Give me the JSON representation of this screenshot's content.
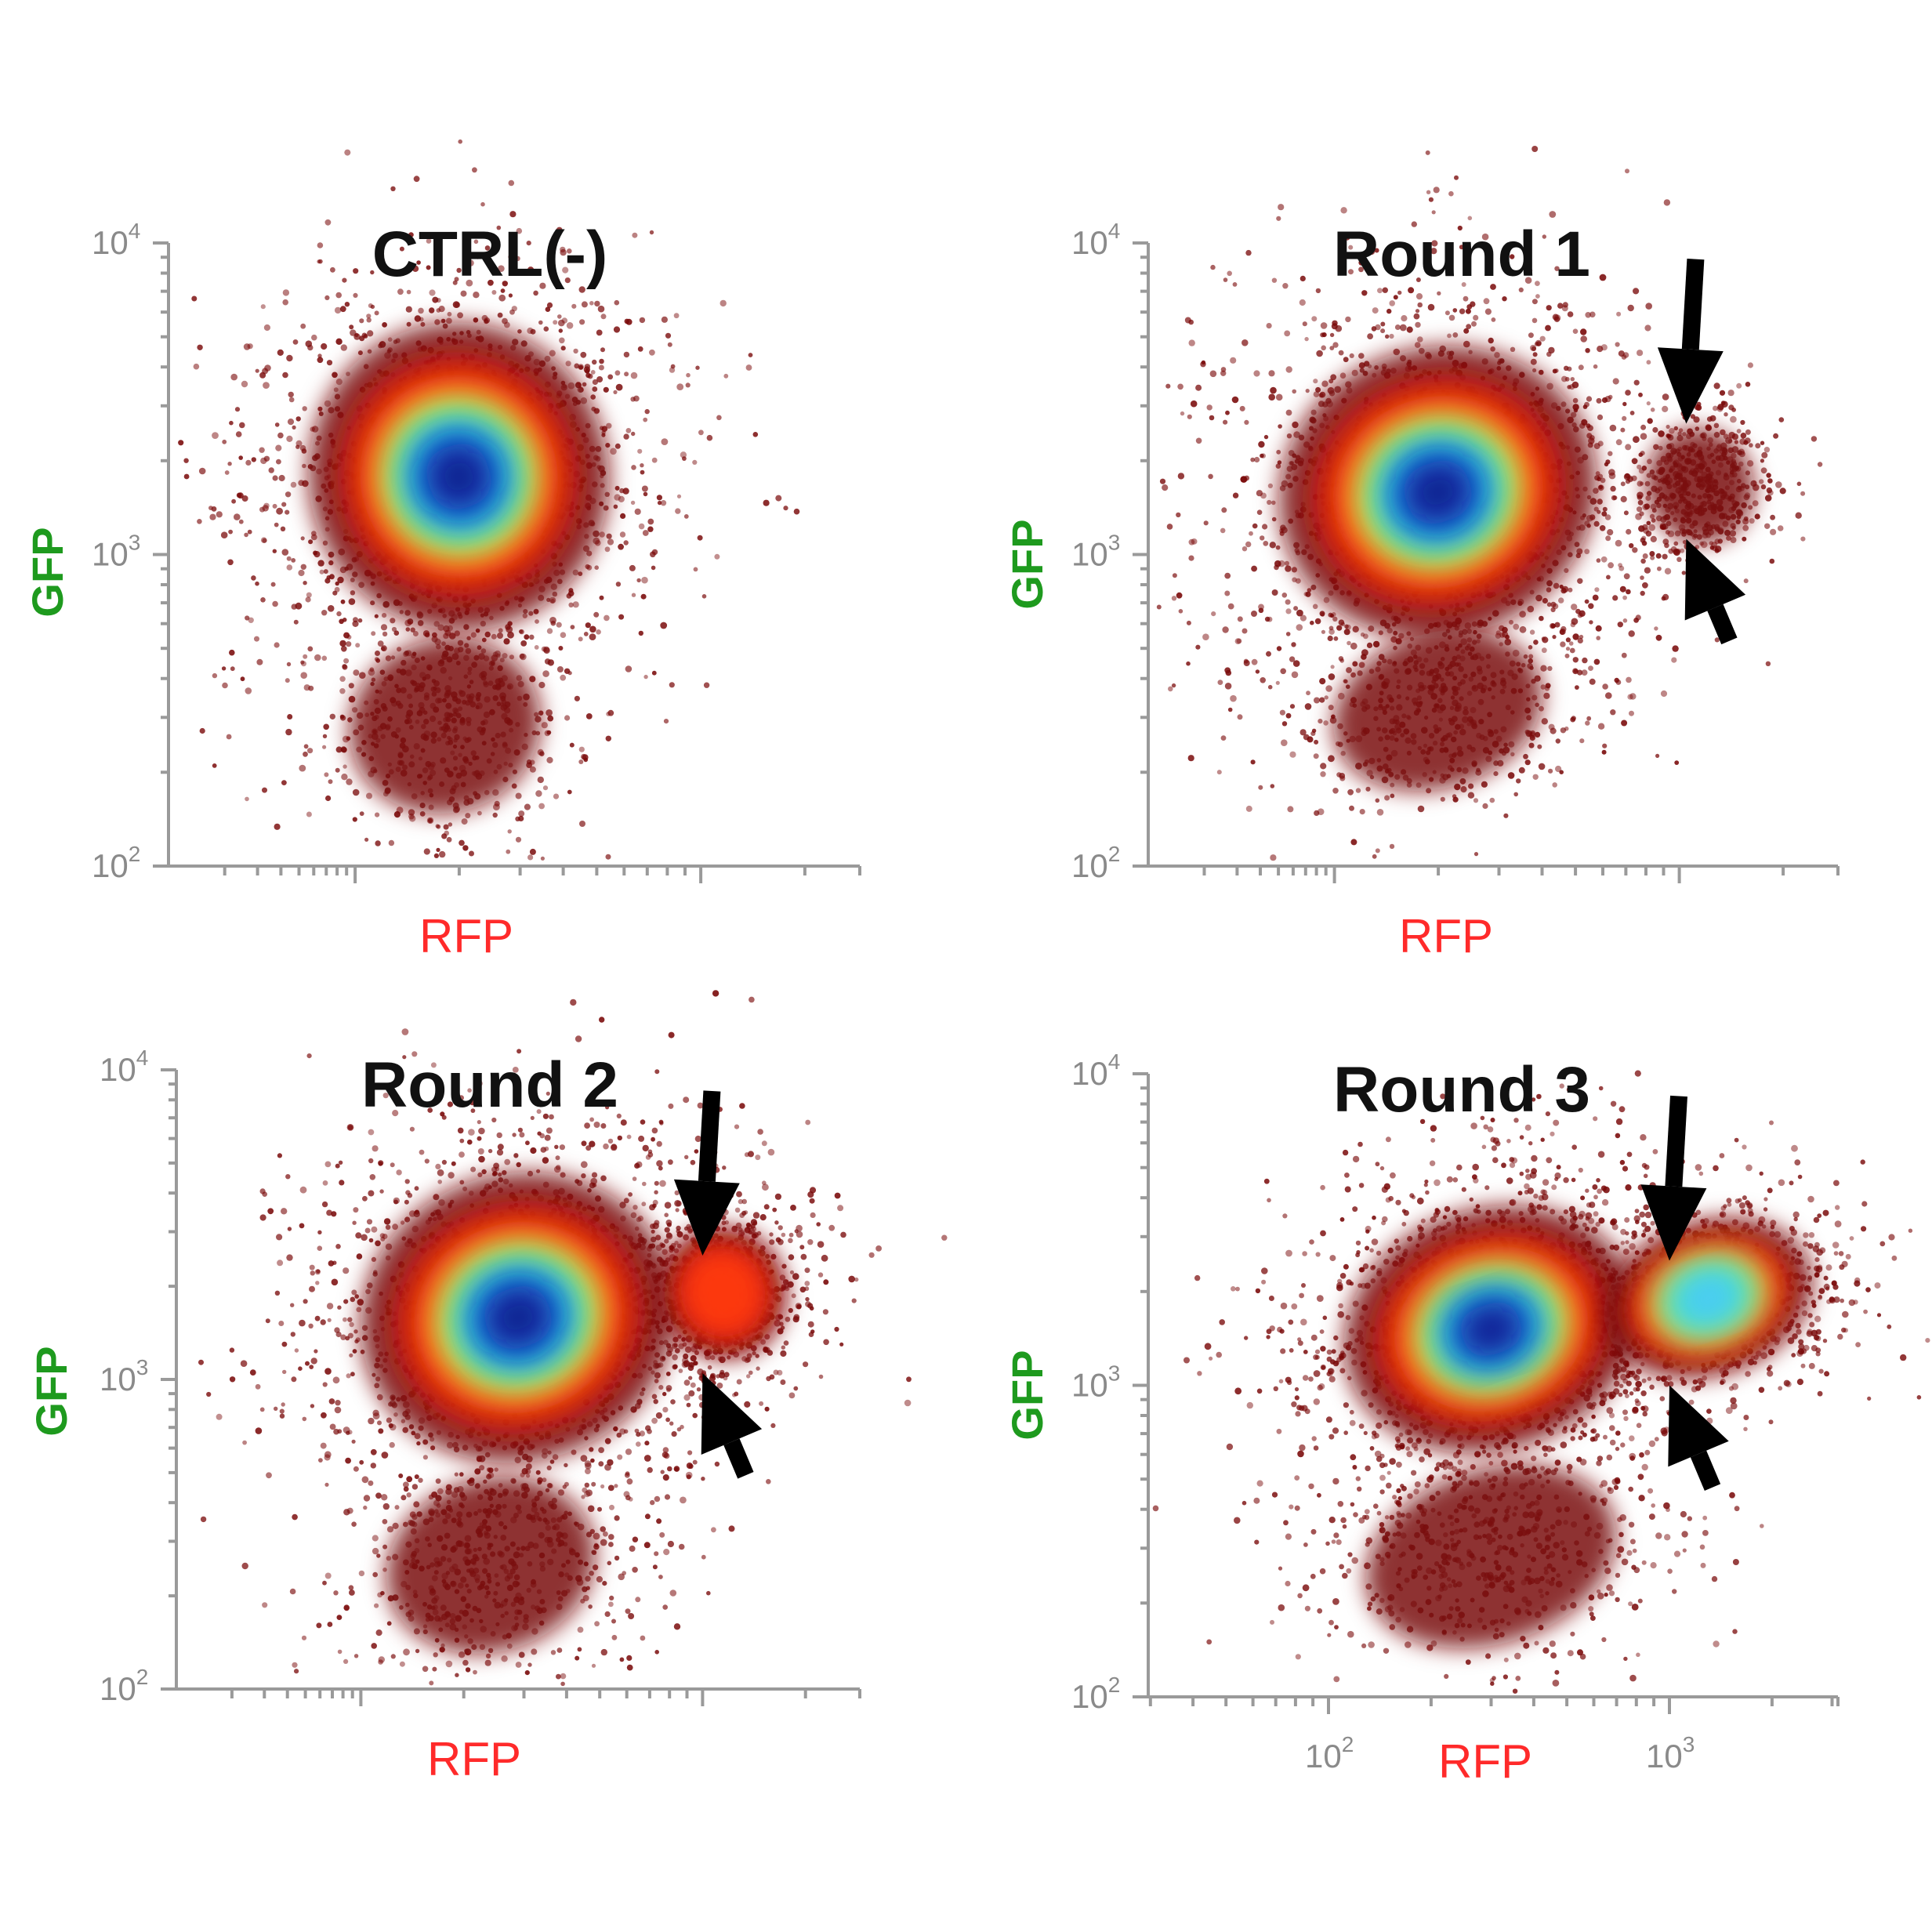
{
  "colors": {
    "gfp_label": "#1e9a1e",
    "rfp_label": "#ff2a2a",
    "axis": "#9a9a9a",
    "arrow": "#000000",
    "density_low": "#7a0a0a",
    "density_mid": "#ff3a10",
    "density_yellow": "#ffe020",
    "density_cyan": "#25d8f0",
    "density_high": "#0a1e8c"
  },
  "chart_data": [
    {
      "type": "scatter",
      "title": "CTRL(-)",
      "xlabel": "RFP",
      "ylabel": "GFP",
      "y_scale": "log",
      "ylim": [
        100,
        10000
      ],
      "y_ticks": [
        {
          "base": "10",
          "exp": "2"
        },
        {
          "base": "10",
          "exp": "3"
        },
        {
          "base": "10",
          "exp": "4"
        }
      ],
      "x_ticks": [],
      "populations": [
        {
          "name": "main",
          "rfp_rel": 0.42,
          "log_gfp": 3.25,
          "spread_x": 0.14,
          "spread_y": 0.32,
          "density": "high"
        },
        {
          "name": "low-GFP tail",
          "rfp_rel": 0.4,
          "log_gfp": 2.45,
          "spread_x": 0.09,
          "spread_y": 0.18,
          "density": "low"
        }
      ],
      "arrows": []
    },
    {
      "type": "scatter",
      "title": "Round 1",
      "xlabel": "RFP",
      "ylabel": "GFP",
      "y_scale": "log",
      "ylim": [
        100,
        10000
      ],
      "y_ticks": [
        {
          "base": "10",
          "exp": "2"
        },
        {
          "base": "10",
          "exp": "3"
        },
        {
          "base": "10",
          "exp": "4"
        }
      ],
      "x_ticks": [],
      "populations": [
        {
          "name": "main",
          "rfp_rel": 0.42,
          "log_gfp": 3.2,
          "spread_x": 0.15,
          "spread_y": 0.3,
          "density": "high"
        },
        {
          "name": "high-RFP",
          "rfp_rel": 0.8,
          "log_gfp": 3.22,
          "spread_x": 0.05,
          "spread_y": 0.12,
          "density": "low"
        },
        {
          "name": "low-GFP tail",
          "rfp_rel": 0.42,
          "log_gfp": 2.5,
          "spread_x": 0.1,
          "spread_y": 0.16,
          "density": "low"
        }
      ],
      "arrows": [
        {
          "rfp_rel": 0.78,
          "log_gfp": 3.42
        },
        {
          "rfp_rel": 0.78,
          "log_gfp": 3.05
        }
      ]
    },
    {
      "type": "scatter",
      "title": "Round 2",
      "xlabel": "RFP",
      "ylabel": "GFP",
      "y_scale": "log",
      "ylim": [
        100,
        10000
      ],
      "y_ticks": [
        {
          "base": "10",
          "exp": "2"
        },
        {
          "base": "10",
          "exp": "3"
        },
        {
          "base": "10",
          "exp": "4"
        }
      ],
      "x_ticks": [],
      "populations": [
        {
          "name": "main",
          "rfp_rel": 0.5,
          "log_gfp": 3.2,
          "spread_x": 0.15,
          "spread_y": 0.3,
          "density": "high"
        },
        {
          "name": "high-RFP",
          "rfp_rel": 0.8,
          "log_gfp": 3.28,
          "spread_x": 0.06,
          "spread_y": 0.14,
          "density": "mid"
        },
        {
          "name": "low-GFP tail",
          "rfp_rel": 0.46,
          "log_gfp": 2.4,
          "spread_x": 0.1,
          "spread_y": 0.18,
          "density": "low"
        }
      ],
      "arrows": [
        {
          "rfp_rel": 0.77,
          "log_gfp": 3.4
        },
        {
          "rfp_rel": 0.77,
          "log_gfp": 3.02
        }
      ]
    },
    {
      "type": "scatter",
      "title": "Round 3",
      "xlabel": "RFP",
      "ylabel": "GFP",
      "y_scale": "log",
      "ylim": [
        100,
        10000
      ],
      "y_ticks": [
        {
          "base": "10",
          "exp": "2"
        },
        {
          "base": "10",
          "exp": "3"
        },
        {
          "base": "10",
          "exp": "4"
        }
      ],
      "x_scale": "log",
      "x_ticks": [
        {
          "base": "10",
          "exp": "2",
          "value": 100
        },
        {
          "base": "10",
          "exp": "3",
          "value": 1000
        }
      ],
      "populations": [
        {
          "name": "main",
          "rfp_value": 300,
          "log_gfp": 3.18,
          "spread_x": 0.14,
          "spread_y": 0.25,
          "density": "high"
        },
        {
          "name": "high-RFP",
          "rfp_value": 1300,
          "log_gfp": 3.28,
          "spread_x": 0.1,
          "spread_y": 0.16,
          "density": "mid-high"
        },
        {
          "name": "low-GFP tail",
          "rfp_value": 300,
          "log_gfp": 2.45,
          "spread_x": 0.12,
          "spread_y": 0.18,
          "density": "low"
        }
      ],
      "arrows": [
        {
          "rfp_value": 1000,
          "log_gfp": 3.4
        },
        {
          "rfp_value": 1000,
          "log_gfp": 3.0
        }
      ]
    }
  ]
}
